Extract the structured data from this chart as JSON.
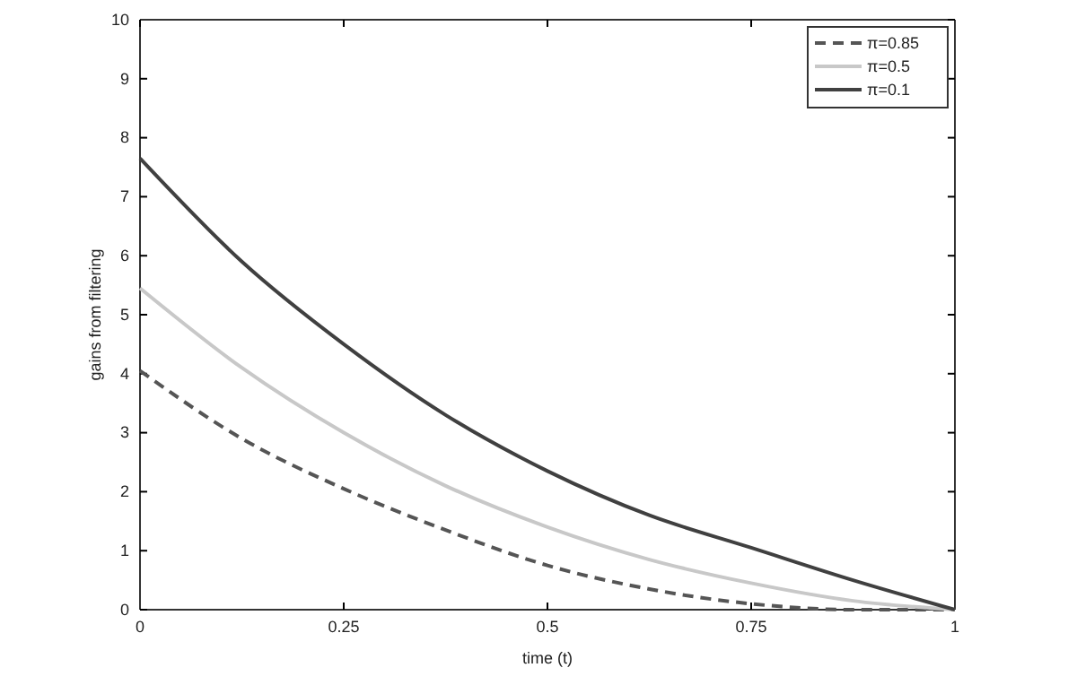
{
  "chart_data": {
    "type": "line",
    "xlabel": "time (t)",
    "ylabel": "gains from filtering",
    "x": [
      0,
      0.125,
      0.25,
      0.375,
      0.5,
      0.625,
      0.75,
      0.875,
      1
    ],
    "series": [
      {
        "name": "π=0.85",
        "color": "#555555",
        "line_style": "dashed",
        "values": [
          4.05,
          2.9,
          2.05,
          1.35,
          0.75,
          0.35,
          0.1,
          0,
          0
        ]
      },
      {
        "name": "π=0.5",
        "color": "#c8c8c8",
        "line_style": "solid",
        "values": [
          5.45,
          4.1,
          3.0,
          2.1,
          1.4,
          0.85,
          0.45,
          0.15,
          0
        ]
      },
      {
        "name": "π=0.1",
        "color": "#404040",
        "line_style": "solid",
        "values": [
          7.65,
          5.9,
          4.5,
          3.3,
          2.35,
          1.6,
          1.05,
          0.5,
          0
        ]
      }
    ],
    "xlim": [
      0,
      1
    ],
    "xticks": [
      0,
      0.25,
      0.5,
      0.75,
      1
    ],
    "ylim": [
      0,
      10
    ],
    "yticks": [
      0,
      1,
      2,
      3,
      4,
      5,
      6,
      7,
      8,
      9,
      10
    ],
    "grid": false,
    "legend": "top right"
  }
}
